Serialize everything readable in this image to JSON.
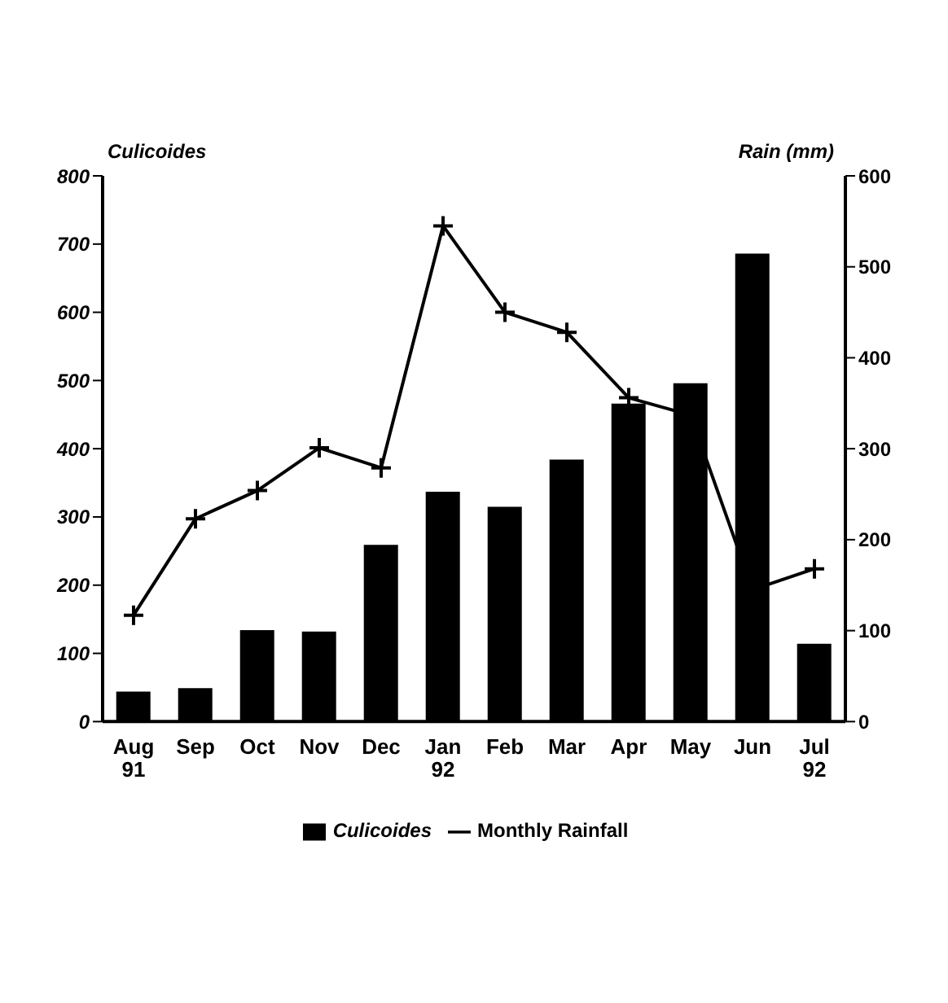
{
  "chart_data": {
    "type": "bar",
    "ylabel": "Culicoides",
    "y2label": "Rain (mm)",
    "categories": [
      "Aug 91",
      "Sep",
      "Oct",
      "Nov",
      "Dec",
      "Jan 92",
      "Feb",
      "Mar",
      "Apr",
      "May",
      "Jun",
      "Jul 92"
    ],
    "series": [
      {
        "name": "Culicoides",
        "color": "#000000",
        "values": [
          44,
          49,
          134,
          132,
          259,
          337,
          315,
          384,
          466,
          496,
          686,
          114
        ]
      },
      {
        "name": "Monthly Rainfall",
        "type": "line",
        "axis": "y2",
        "color": "#000000",
        "marker": "cross",
        "values": [
          117,
          223,
          254,
          301,
          279,
          545,
          450,
          428,
          356,
          337,
          145,
          168
        ]
      }
    ],
    "ylim": [
      0,
      800
    ],
    "yticks": [
      0,
      100,
      200,
      300,
      400,
      500,
      600,
      700,
      800
    ],
    "y2lim": [
      0,
      600
    ],
    "y2ticks": [
      0,
      100,
      200,
      300,
      400,
      500,
      600
    ],
    "legend": "bottom",
    "grid": false
  }
}
